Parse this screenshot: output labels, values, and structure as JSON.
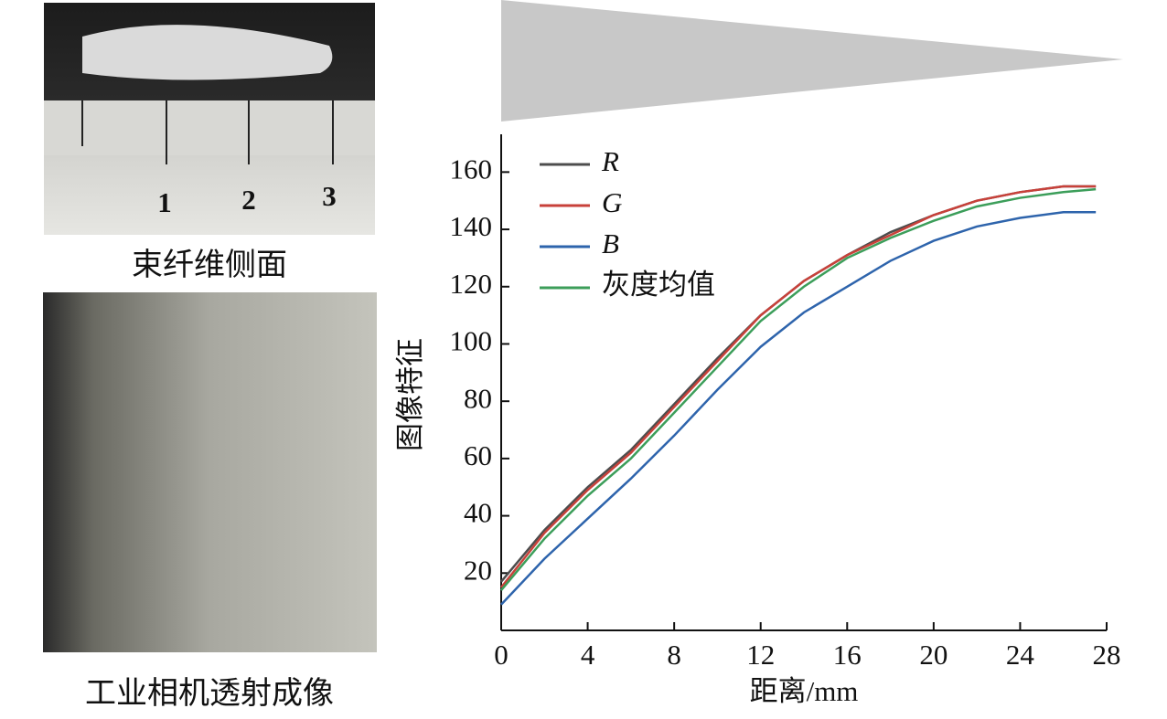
{
  "panels": [
    {
      "caption": "束纤维侧面"
    },
    {
      "caption": "工业相机透射成像"
    }
  ],
  "chart_data": {
    "type": "line",
    "x_label": "距离/mm",
    "y_label": "图像特征",
    "x": [
      0,
      2,
      4,
      6,
      8,
      10,
      12,
      14,
      16,
      18,
      20,
      22,
      24,
      26,
      27.5
    ],
    "series": [
      {
        "name": "R",
        "color": "#4d4d4d",
        "values": [
          17,
          35,
          50,
          63,
          79,
          95,
          110,
          122,
          131,
          139,
          145,
          150,
          153,
          155,
          155
        ]
      },
      {
        "name": "G",
        "color": "#c8413a",
        "values": [
          15,
          34,
          49,
          62,
          78,
          94,
          110,
          122,
          131,
          138,
          145,
          150,
          153,
          155,
          155
        ]
      },
      {
        "name": "B",
        "color": "#2e64ac",
        "values": [
          9,
          25,
          39,
          53,
          68,
          84,
          99,
          111,
          120,
          129,
          136,
          141,
          144,
          146,
          146
        ]
      },
      {
        "name": "灰度均值",
        "color": "#3c9e5a",
        "values": [
          14,
          32,
          47,
          60,
          76,
          92,
          108,
          120,
          130,
          137,
          143,
          148,
          151,
          153,
          154
        ]
      }
    ],
    "xlim": [
      0,
      28
    ],
    "xticks": [
      0,
      4,
      8,
      12,
      16,
      20,
      24,
      28
    ],
    "ylim": [
      0,
      170
    ],
    "yticks": [
      20,
      40,
      60,
      80,
      100,
      120,
      140,
      160
    ],
    "grid": false,
    "legend": "upper left"
  }
}
